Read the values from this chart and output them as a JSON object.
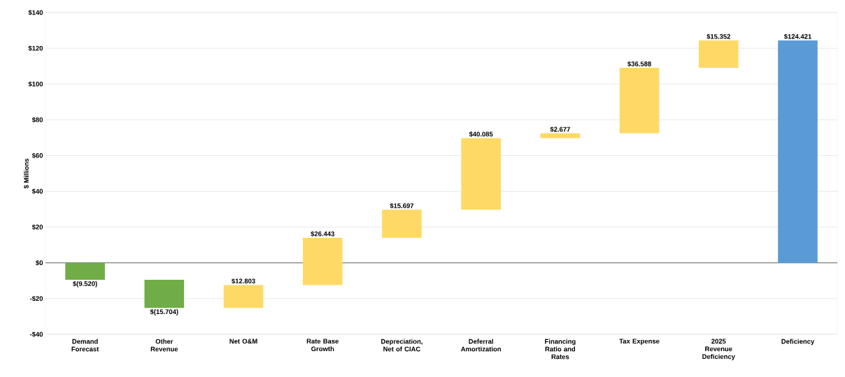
{
  "chart_data": {
    "type": "bar",
    "ylabel": "$ Millions",
    "categories": [
      "Demand Forecast",
      "Other Revenue",
      "Net O&M",
      "Rate Base Growth",
      "Depreciation, Net of CIAC",
      "Deferral Amortization",
      "Financing Ratio and Rates",
      "Tax Expense",
      "2025 Revenue Deficiency",
      "Deficiency"
    ],
    "values": [
      -9.52,
      -15.704,
      12.803,
      26.443,
      15.697,
      40.085,
      2.677,
      36.588,
      15.352,
      124.421
    ],
    "base": [
      0,
      -9.52,
      -25.224,
      -12.421,
      14.022,
      29.719,
      69.804,
      72.481,
      109.069,
      0
    ],
    "colors": [
      "#70ad47",
      "#70ad47",
      "#ffd966",
      "#ffd966",
      "#ffd966",
      "#ffd966",
      "#ffd966",
      "#ffd966",
      "#ffd966",
      "#5b9bd5"
    ],
    "value_labels": [
      "$(9.520)",
      "$(15.704)",
      "$12.803",
      "$26.443",
      "$15.697",
      "$40.085",
      "$2.677",
      "$36.588",
      "$15.352",
      "$124.421"
    ],
    "ylim": [
      -40,
      140
    ],
    "yticks": [
      {
        "value": -40,
        "label": "-$40"
      },
      {
        "value": -20,
        "label": "-$20"
      },
      {
        "value": 0,
        "label": "$0"
      },
      {
        "value": 20,
        "label": "$20"
      },
      {
        "value": 40,
        "label": "$40"
      },
      {
        "value": 60,
        "label": "$60"
      },
      {
        "value": 80,
        "label": "$80"
      },
      {
        "value": 100,
        "label": "$100"
      },
      {
        "value": 120,
        "label": "$120"
      },
      {
        "value": 140,
        "label": "$140"
      }
    ],
    "grid": "y",
    "ref_lines": [
      {
        "axis": "y",
        "value": 0,
        "color": "#404040"
      }
    ]
  }
}
